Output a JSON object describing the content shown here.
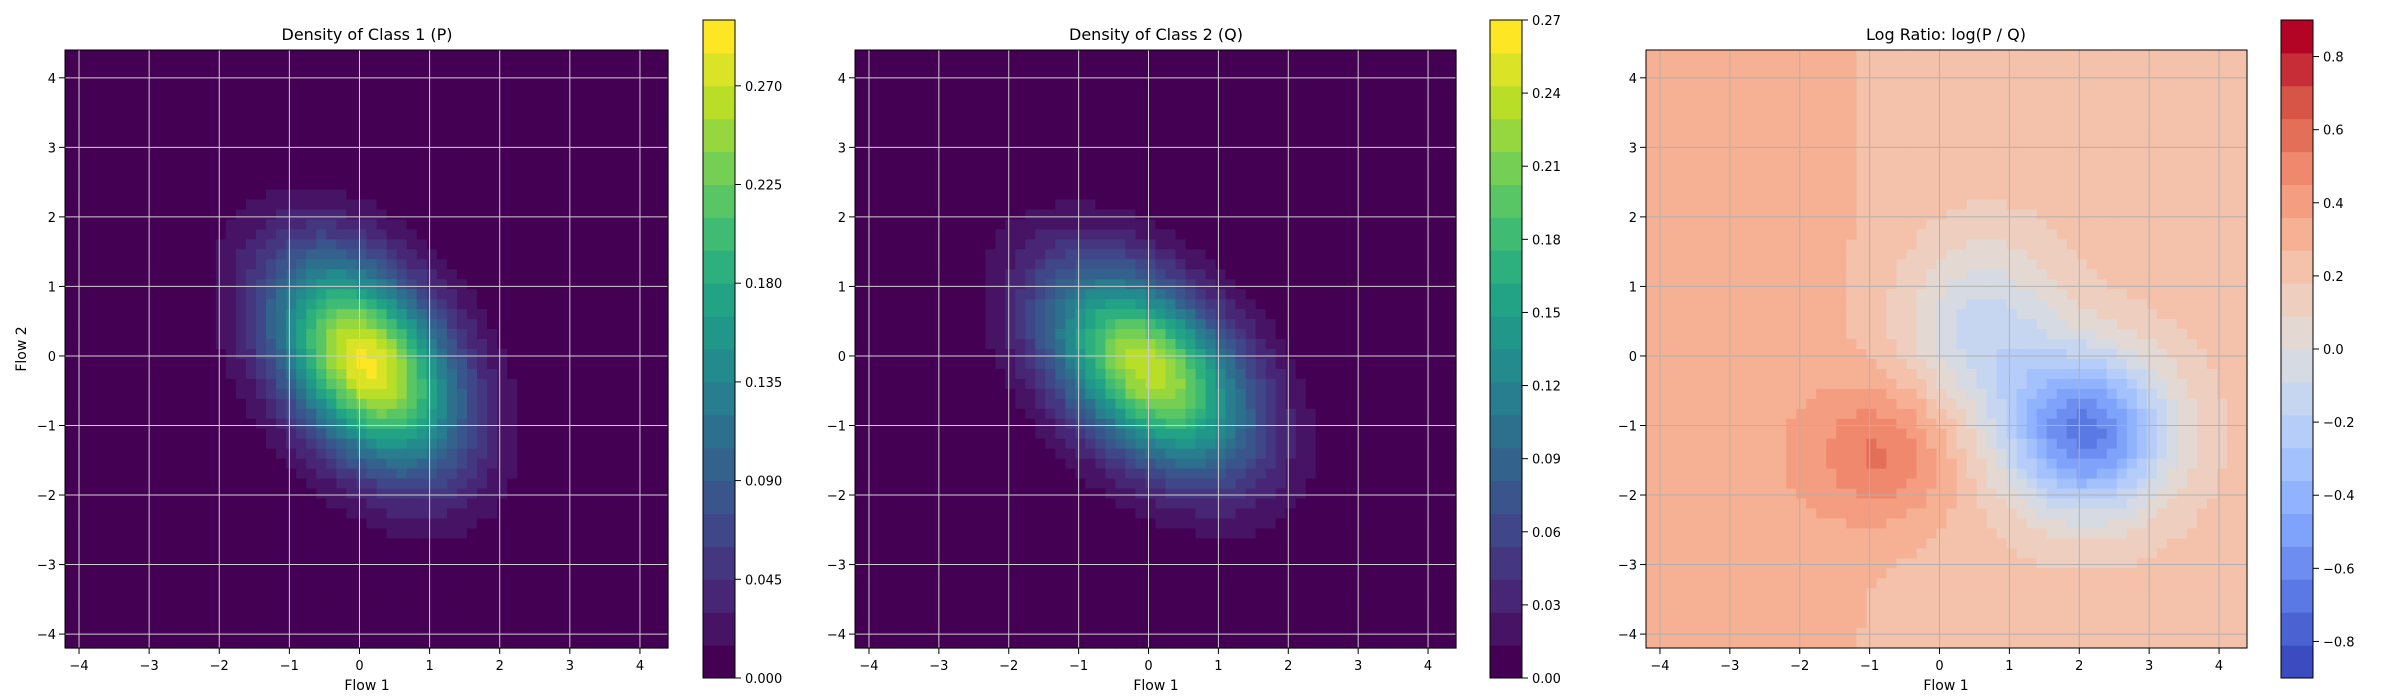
{
  "chart_data": [
    {
      "type": "heatmap",
      "title": "Density of Class 1 (P)",
      "xlabel": "Flow 1",
      "ylabel": "Flow 2",
      "xlim": [
        -4.2,
        4.4
      ],
      "ylim": [
        -4.2,
        4.4
      ],
      "xticks": [
        -4,
        -3,
        -2,
        -1,
        0,
        1,
        2,
        3,
        4
      ],
      "yticks": [
        -4,
        -3,
        -2,
        -1,
        0,
        1,
        2,
        3,
        4
      ],
      "grid": true,
      "colormap": "viridis",
      "colorbar": {
        "range": [
          0,
          0.3
        ],
        "ticks": [
          0.0,
          0.045,
          0.09,
          0.135,
          0.18,
          0.225,
          0.27
        ],
        "tick_labels": [
          "0.000",
          "0.045",
          "0.090",
          "0.135",
          "0.180",
          "0.225",
          "0.270"
        ]
      },
      "field": {
        "kind": "gaussian",
        "center": [
          0.1,
          -0.1
        ],
        "peak": 0.29,
        "var_major": 1.35,
        "var_minor": 0.55,
        "angle_deg": -55
      }
    },
    {
      "type": "heatmap",
      "title": "Density of Class 2 (Q)",
      "xlabel": "Flow 1",
      "ylabel": "",
      "xlim": [
        -4.2,
        4.4
      ],
      "ylim": [
        -4.2,
        4.4
      ],
      "xticks": [
        -4,
        -3,
        -2,
        -1,
        0,
        1,
        2,
        3,
        4
      ],
      "yticks": [
        -4,
        -3,
        -2,
        -1,
        0,
        1,
        2,
        3,
        4
      ],
      "grid": true,
      "colormap": "viridis",
      "colorbar": {
        "range": [
          0,
          0.27
        ],
        "ticks": [
          0.0,
          0.03,
          0.06,
          0.09,
          0.12,
          0.15,
          0.18,
          0.21,
          0.24,
          0.27
        ],
        "tick_labels": [
          "0.00",
          "0.03",
          "0.06",
          "0.09",
          "0.12",
          "0.15",
          "0.18",
          "0.21",
          "0.24",
          "0.27"
        ]
      },
      "field": {
        "kind": "gaussian",
        "center": [
          0.0,
          -0.2
        ],
        "peak": 0.24,
        "var_major": 1.45,
        "var_minor": 0.55,
        "angle_deg": -45
      }
    },
    {
      "type": "heatmap",
      "title": "Log Ratio: log(P / Q)",
      "xlabel": "Flow 1",
      "ylabel": "",
      "xlim": [
        -4.2,
        4.4
      ],
      "ylim": [
        -4.2,
        4.4
      ],
      "xticks": [
        -4,
        -3,
        -2,
        -1,
        0,
        1,
        2,
        3,
        4
      ],
      "yticks": [
        -4,
        -3,
        -2,
        -1,
        0,
        1,
        2,
        3,
        4
      ],
      "grid": true,
      "colormap": "coolwarm",
      "colorbar": {
        "range": [
          -0.9,
          0.9
        ],
        "ticks": [
          -0.8,
          -0.6,
          -0.4,
          -0.2,
          0.0,
          0.2,
          0.4,
          0.6,
          0.8
        ],
        "tick_labels": [
          "−0.8",
          "−0.6",
          "−0.4",
          "−0.2",
          "0.0",
          "0.2",
          "0.4",
          "0.6",
          "0.8"
        ]
      },
      "field": {
        "kind": "log_ratio",
        "negative_center": [
          2.1,
          -1.1
        ],
        "negative_min": -0.8,
        "positive_center": [
          -0.8,
          -1.4
        ],
        "positive_max": 0.55
      }
    }
  ]
}
